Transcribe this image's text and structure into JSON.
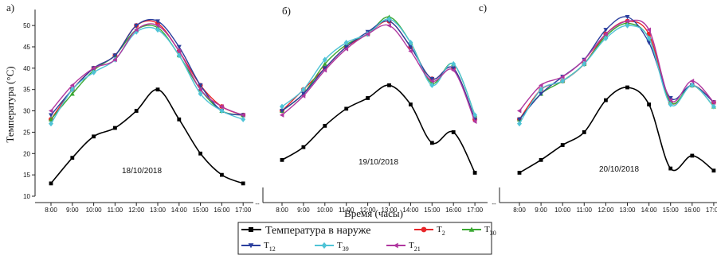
{
  "chart_data": {
    "type": "line",
    "ylabel": "Температура (°C)",
    "xlabel": "Время (часы)",
    "ylim": [
      10,
      53
    ],
    "yticks": [
      10,
      15,
      20,
      25,
      30,
      35,
      40,
      45,
      50
    ],
    "x": [
      "8:00",
      "9:00",
      "10:00",
      "11:00",
      "12:00",
      "13:00",
      "14:00",
      "15:00",
      "16:00",
      "17:00"
    ],
    "axis_break": "--",
    "legend": {
      "outside": "Температура в наруже",
      "items": [
        {
          "key": "T2",
          "base": "T",
          "sub": "2",
          "color": "#e8262a",
          "marker": "circle"
        },
        {
          "key": "T30",
          "base": "T",
          "sub": "30",
          "color": "#3aa832",
          "marker": "triangle-up"
        },
        {
          "key": "T12",
          "base": "T",
          "sub": "12",
          "color": "#2b3f9e",
          "marker": "triangle-down"
        },
        {
          "key": "T39",
          "base": "T",
          "sub": "39",
          "color": "#4fc3d6",
          "marker": "diamond"
        },
        {
          "key": "T21",
          "base": "T",
          "sub": "21",
          "color": "#b0379f",
          "marker": "triangle-left"
        }
      ]
    },
    "panels": [
      {
        "letter": "а)",
        "date": "18/10/2018",
        "outside": [
          13,
          19,
          24,
          26,
          30,
          35,
          28,
          20,
          15,
          13
        ],
        "series": {
          "T2": [
            28,
            35,
            40,
            43,
            50,
            50.5,
            44,
            36,
            31,
            29
          ],
          "T30": [
            28,
            34,
            39.5,
            43,
            49,
            49.5,
            43,
            35,
            30,
            29
          ],
          "T12": [
            29,
            35,
            40,
            43,
            50,
            51,
            45,
            36,
            30,
            29
          ],
          "T39": [
            27,
            35,
            39,
            42,
            48.5,
            49,
            43,
            34,
            30,
            28
          ],
          "T21": [
            30,
            36,
            40,
            42,
            49,
            50,
            44,
            35,
            31,
            29
          ]
        }
      },
      {
        "letter": "б)",
        "date": "19/10/2018",
        "outside": [
          18.5,
          21.5,
          26.5,
          30.5,
          33,
          36,
          31.5,
          22.5,
          25,
          15.5
        ],
        "series": {
          "T2": [
            30,
            35,
            40,
            45,
            48,
            51,
            45,
            37.5,
            40,
            28
          ],
          "T30": [
            30,
            34,
            41,
            45.5,
            48,
            52,
            46,
            36.5,
            41,
            29
          ],
          "T12": [
            30,
            34,
            40,
            45,
            48.5,
            51,
            45,
            37.5,
            40,
            28
          ],
          "T39": [
            31,
            35,
            42,
            46,
            48,
            51.5,
            46,
            36,
            41,
            29
          ],
          "T21": [
            29,
            33.5,
            39.5,
            44.5,
            48,
            50,
            44,
            37,
            39.5,
            27.5
          ]
        }
      },
      {
        "letter": "с)",
        "date": "20/10/2018",
        "outside": [
          15.5,
          18.5,
          22,
          25,
          32.5,
          35.5,
          31.5,
          16.5,
          19.5,
          16
        ],
        "series": {
          "T2": [
            28,
            35,
            37,
            41,
            48,
            51,
            48,
            32,
            36,
            32
          ],
          "T30": [
            28,
            34,
            37,
            41,
            47.5,
            50.5,
            47,
            32,
            36,
            31
          ],
          "T12": [
            28,
            34,
            38,
            42,
            49,
            52,
            46,
            33,
            36,
            32
          ],
          "T39": [
            27,
            35,
            37,
            41,
            47,
            50,
            47,
            31.5,
            36,
            31
          ],
          "T21": [
            30,
            36,
            38,
            42,
            48,
            51,
            49,
            32.5,
            37,
            32
          ]
        }
      }
    ]
  }
}
